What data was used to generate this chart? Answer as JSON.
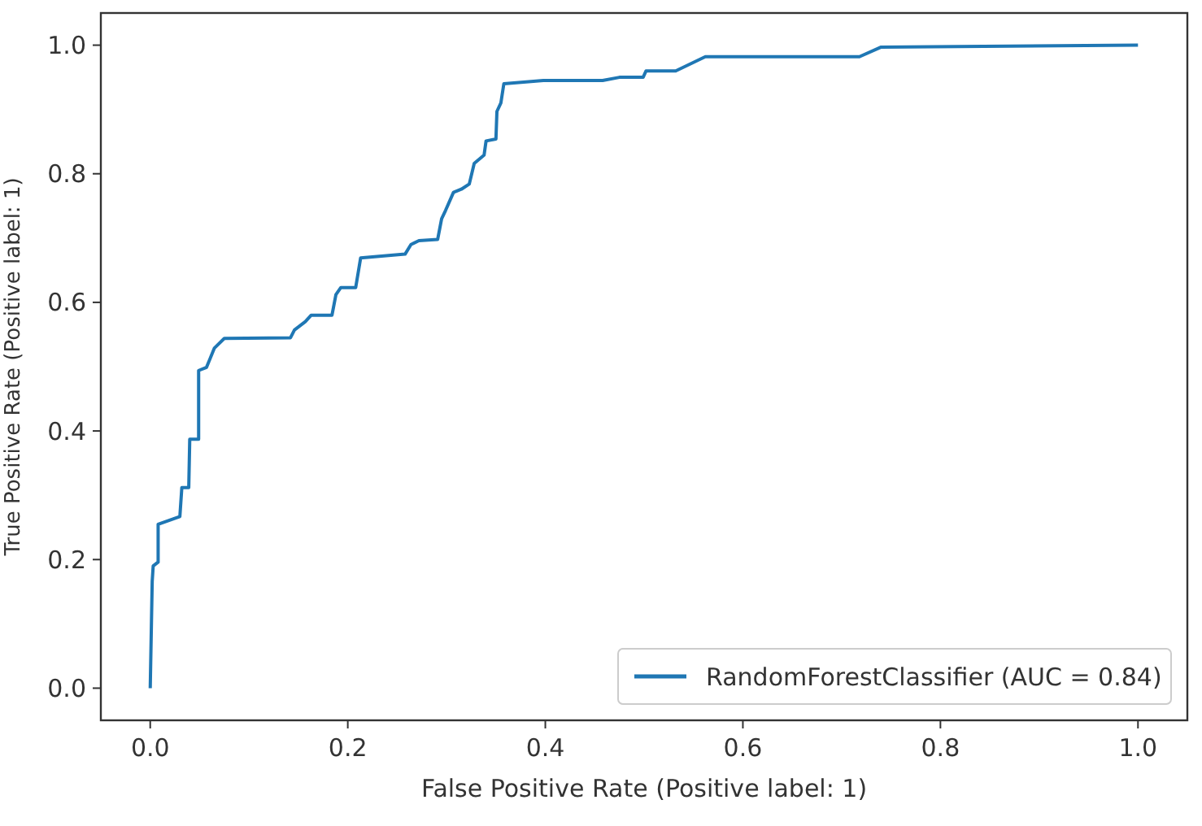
{
  "chart_data": {
    "type": "line",
    "xlabel": "False Positive Rate (Positive label: 1)",
    "ylabel": "True Positive Rate (Positive label: 1)",
    "xlim": [
      -0.05,
      1.05
    ],
    "ylim": [
      -0.05,
      1.05
    ],
    "xticks": [
      {
        "value": 0,
        "label": "0.0"
      },
      {
        "value": 0.2,
        "label": "0.2"
      },
      {
        "value": 0.4,
        "label": "0.4"
      },
      {
        "value": 0.6,
        "label": "0.6"
      },
      {
        "value": 0.8,
        "label": "0.8"
      },
      {
        "value": 1,
        "label": "1.0"
      }
    ],
    "yticks": [
      {
        "value": 0,
        "label": "0.0"
      },
      {
        "value": 0.2,
        "label": "0.2"
      },
      {
        "value": 0.4,
        "label": "0.4"
      },
      {
        "value": 0.6,
        "label": "0.6"
      },
      {
        "value": 0.8,
        "label": "0.8"
      },
      {
        "value": 1,
        "label": "1.0"
      }
    ],
    "legend": "bottom right",
    "grid": false,
    "series": [
      {
        "name": "RandomForestClassifier (AUC = 0.84)",
        "color": "#1f77b4",
        "x": [
          0,
          0.002,
          0.003,
          0.008,
          0.008,
          0.03,
          0.032,
          0.039,
          0.04,
          0.049,
          0.049,
          0.057,
          0.065,
          0.075,
          0.142,
          0.146,
          0.157,
          0.163,
          0.184,
          0.188,
          0.193,
          0.208,
          0.213,
          0.258,
          0.264,
          0.272,
          0.291,
          0.295,
          0.299,
          0.307,
          0.315,
          0.323,
          0.328,
          0.338,
          0.34,
          0.35,
          0.351,
          0.355,
          0.358,
          0.398,
          0.458,
          0.475,
          0.499,
          0.502,
          0.532,
          0.562,
          0.718,
          0.74,
          1.0
        ],
        "values": [
          0,
          0.166,
          0.19,
          0.196,
          0.255,
          0.267,
          0.312,
          0.312,
          0.387,
          0.387,
          0.494,
          0.499,
          0.529,
          0.544,
          0.545,
          0.557,
          0.57,
          0.58,
          0.58,
          0.612,
          0.623,
          0.623,
          0.669,
          0.675,
          0.69,
          0.696,
          0.698,
          0.73,
          0.743,
          0.771,
          0.776,
          0.784,
          0.816,
          0.829,
          0.851,
          0.854,
          0.897,
          0.91,
          0.94,
          0.945,
          0.945,
          0.95,
          0.95,
          0.96,
          0.96,
          0.982,
          0.982,
          0.997,
          1.0
        ]
      }
    ]
  }
}
